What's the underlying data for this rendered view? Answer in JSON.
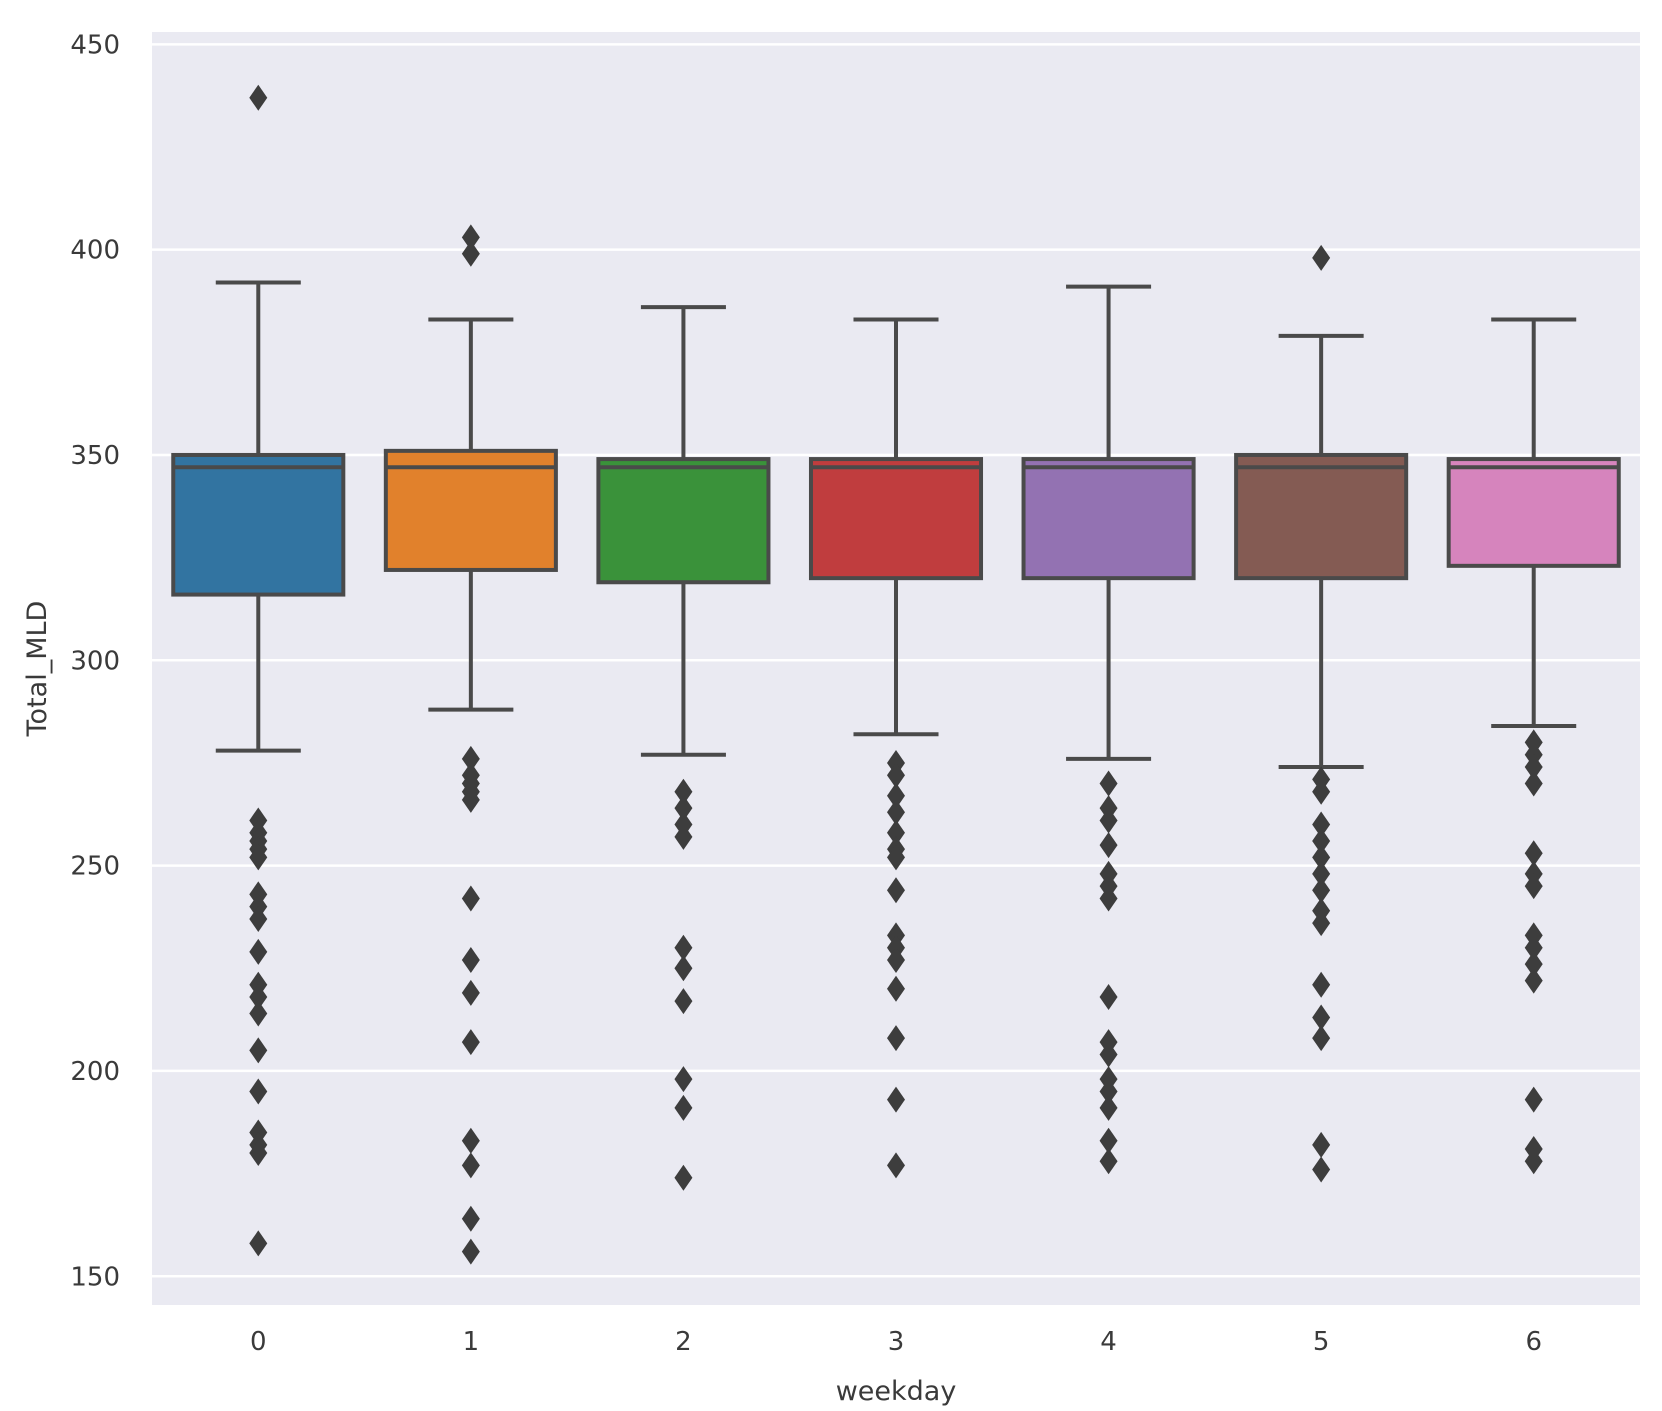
{
  "chart_data": {
    "type": "box",
    "xlabel": "weekday",
    "ylabel": "Total_MLD",
    "ylim": [
      143,
      453
    ],
    "yticks": [
      150,
      200,
      250,
      300,
      350,
      400,
      450
    ],
    "categories": [
      "0",
      "1",
      "2",
      "3",
      "4",
      "5",
      "6"
    ],
    "grid": true,
    "legend": "none",
    "colors": {
      "background": "#eaeaf2",
      "grid": "#ffffff",
      "edge": "#4a4a4a",
      "boxes": [
        "#3274a1",
        "#e1812c",
        "#3a923a",
        "#c03d3e",
        "#9372b2",
        "#845b53",
        "#d684bd"
      ]
    },
    "boxes": [
      {
        "category": "0",
        "whisker_low": 278,
        "q1": 316,
        "median": 347,
        "q3": 350,
        "whisker_high": 392,
        "outliers": [
          437,
          261,
          258,
          256,
          254,
          252,
          243,
          240,
          237,
          229,
          221,
          218,
          214,
          205,
          195,
          185,
          182,
          180,
          158
        ]
      },
      {
        "category": "1",
        "whisker_low": 288,
        "q1": 322,
        "median": 347,
        "q3": 351,
        "whisker_high": 383,
        "outliers": [
          403,
          399,
          276,
          272,
          270,
          268,
          266,
          242,
          227,
          219,
          207,
          183,
          177,
          164,
          156
        ]
      },
      {
        "category": "2",
        "whisker_low": 277,
        "q1": 319,
        "median": 347,
        "q3": 349,
        "whisker_high": 386,
        "outliers": [
          268,
          264,
          260,
          257,
          230,
          225,
          217,
          198,
          191,
          174
        ]
      },
      {
        "category": "3",
        "whisker_low": 282,
        "q1": 320,
        "median": 347,
        "q3": 349,
        "whisker_high": 383,
        "outliers": [
          275,
          272,
          267,
          263,
          258,
          254,
          252,
          244,
          233,
          230,
          227,
          220,
          208,
          193,
          177
        ]
      },
      {
        "category": "4",
        "whisker_low": 276,
        "q1": 320,
        "median": 347,
        "q3": 349,
        "whisker_high": 391,
        "outliers": [
          270,
          264,
          261,
          255,
          248,
          245,
          242,
          218,
          207,
          204,
          198,
          195,
          191,
          183,
          178
        ]
      },
      {
        "category": "5",
        "whisker_low": 274,
        "q1": 320,
        "median": 347,
        "q3": 350,
        "whisker_high": 379,
        "outliers": [
          398,
          271,
          268,
          260,
          256,
          252,
          248,
          244,
          239,
          236,
          221,
          213,
          208,
          182,
          176
        ]
      },
      {
        "category": "6",
        "whisker_low": 284,
        "q1": 323,
        "median": 347,
        "q3": 349,
        "whisker_high": 383,
        "outliers": [
          280,
          277,
          274,
          270,
          253,
          248,
          245,
          233,
          230,
          226,
          222,
          193,
          181,
          178
        ]
      }
    ]
  }
}
